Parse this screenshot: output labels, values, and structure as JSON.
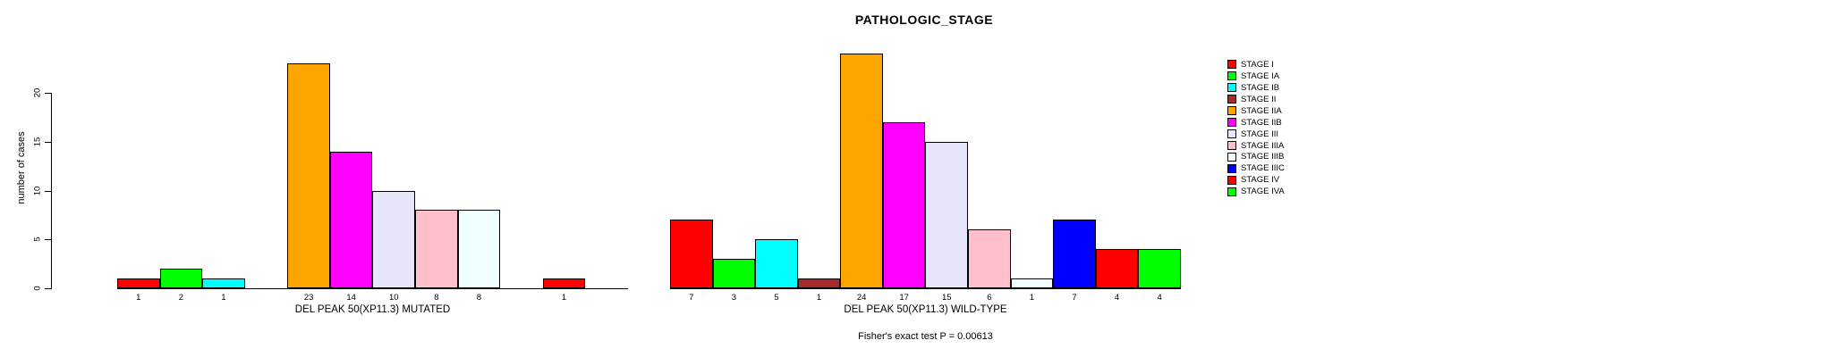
{
  "chart_data": {
    "type": "bar",
    "title": "PATHOLOGIC_STAGE",
    "ylabel": "number of cases",
    "yticks": [
      0,
      5,
      10,
      15,
      20
    ],
    "ylim": [
      0,
      24.7
    ],
    "grid": false,
    "legend_position": "top-right",
    "categories": [
      "STAGE I",
      "STAGE IA",
      "STAGE IB",
      "STAGE II",
      "STAGE IIA",
      "STAGE IIB",
      "STAGE III",
      "STAGE IIIA",
      "STAGE IIIB",
      "STAGE IIIC",
      "STAGE IV",
      "STAGE IVA"
    ],
    "colors": [
      "#FF0000",
      "#00FF00",
      "#00FFFF",
      "#A52A2A",
      "#FFA500",
      "#FF00FF",
      "#E6E6FA",
      "#FFC0CB",
      "#F0FFFF",
      "#0000FF",
      "#FF0000",
      "#00FF00"
    ],
    "panels": [
      {
        "xlabel": "DEL PEAK 50(XP11.3) MUTATED",
        "values": [
          1,
          2,
          1,
          0,
          23,
          14,
          10,
          8,
          8,
          0,
          1,
          0
        ]
      },
      {
        "xlabel": "DEL PEAK 50(XP11.3) WILD-TYPE",
        "values": [
          7,
          3,
          5,
          1,
          24,
          17,
          15,
          6,
          1,
          7,
          4,
          4
        ]
      }
    ],
    "footnote": "Fisher's exact test P = 0.00613"
  }
}
